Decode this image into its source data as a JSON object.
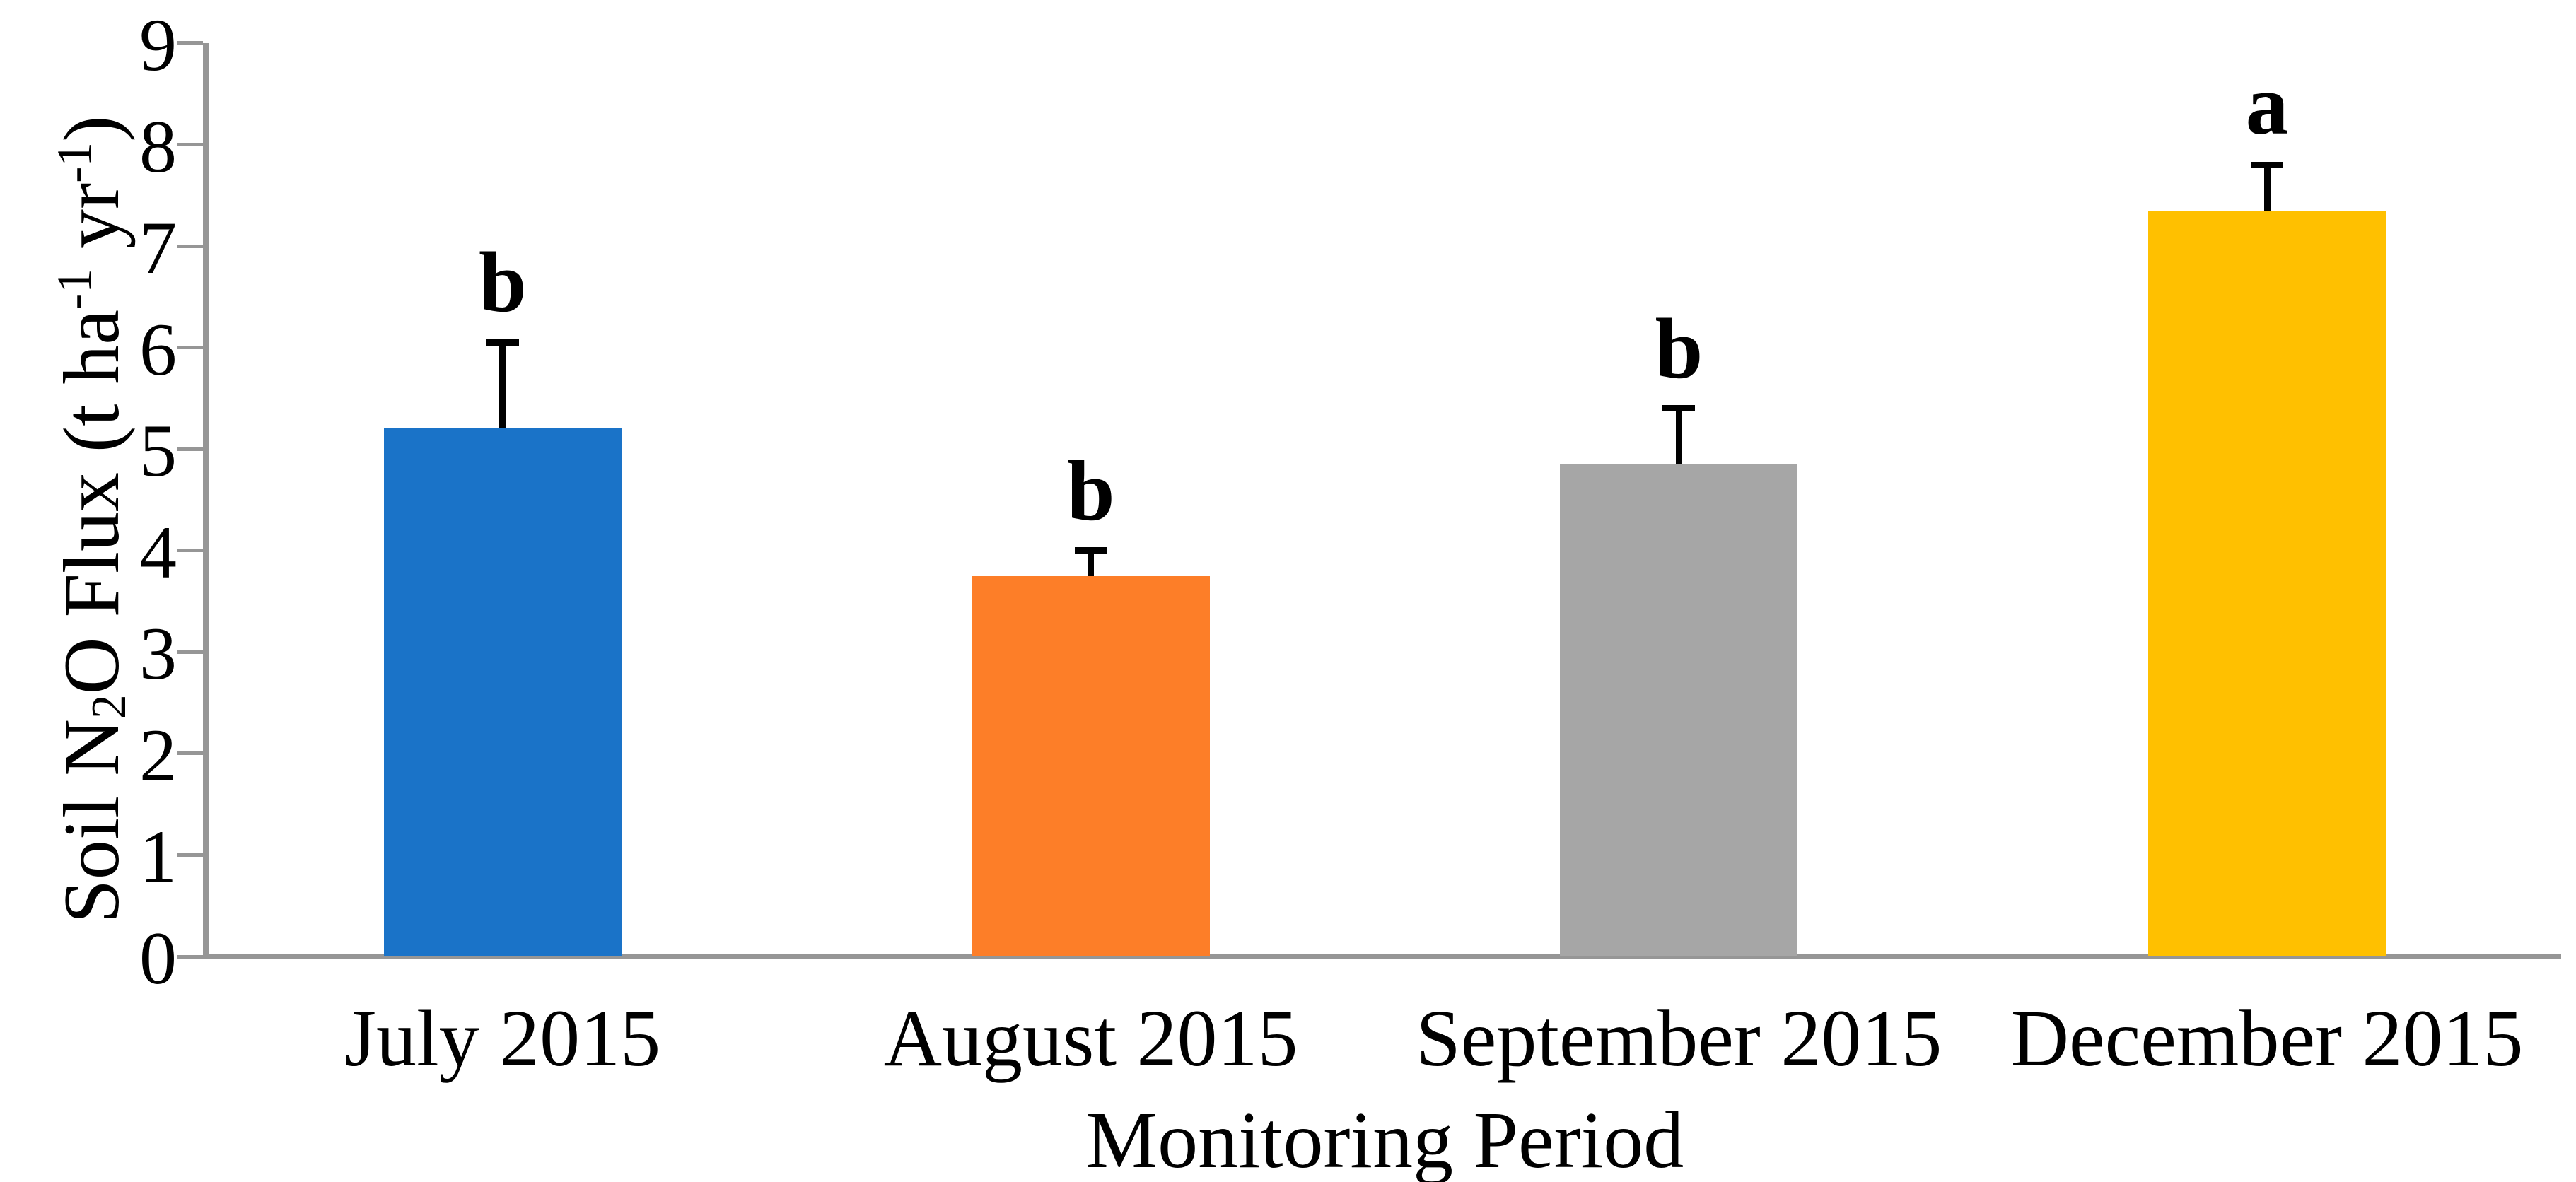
{
  "chart_data": {
    "type": "bar",
    "title": "",
    "categories": [
      "July 2015",
      "August 2015",
      "September 2015",
      "December 2015"
    ],
    "values": [
      5.2,
      3.75,
      4.85,
      7.35
    ],
    "errors_upper": [
      0.85,
      0.25,
      0.55,
      0.45
    ],
    "sig_letters": [
      "b",
      "b",
      "b",
      "a"
    ],
    "bar_colors": [
      "#1A73C8",
      "#FD7E28",
      "#A6A6A6",
      "#FFC000"
    ],
    "xlabel": "Monitoring Period",
    "ylabel": "Soil N2O Flux (t ha-1 yr-1)",
    "ylabel_segments": [
      {
        "text": "Soil N",
        "style": "normal"
      },
      {
        "text": "2",
        "style": "sub"
      },
      {
        "text": "O Flux (t ha",
        "style": "normal"
      },
      {
        "text": "-1",
        "style": "sup"
      },
      {
        "text": " yr",
        "style": "normal"
      },
      {
        "text": "-1",
        "style": "sup"
      },
      {
        "text": ")",
        "style": "normal"
      }
    ],
    "ylim": [
      0,
      9
    ],
    "yticks": [
      "0",
      "1",
      "2",
      "3",
      "4",
      "5",
      "6",
      "7",
      "8",
      "9"
    ],
    "grid": "off",
    "legend": "none",
    "axis_color": "#969696",
    "error_bar_color": "#000000",
    "text_color": "#000000"
  }
}
